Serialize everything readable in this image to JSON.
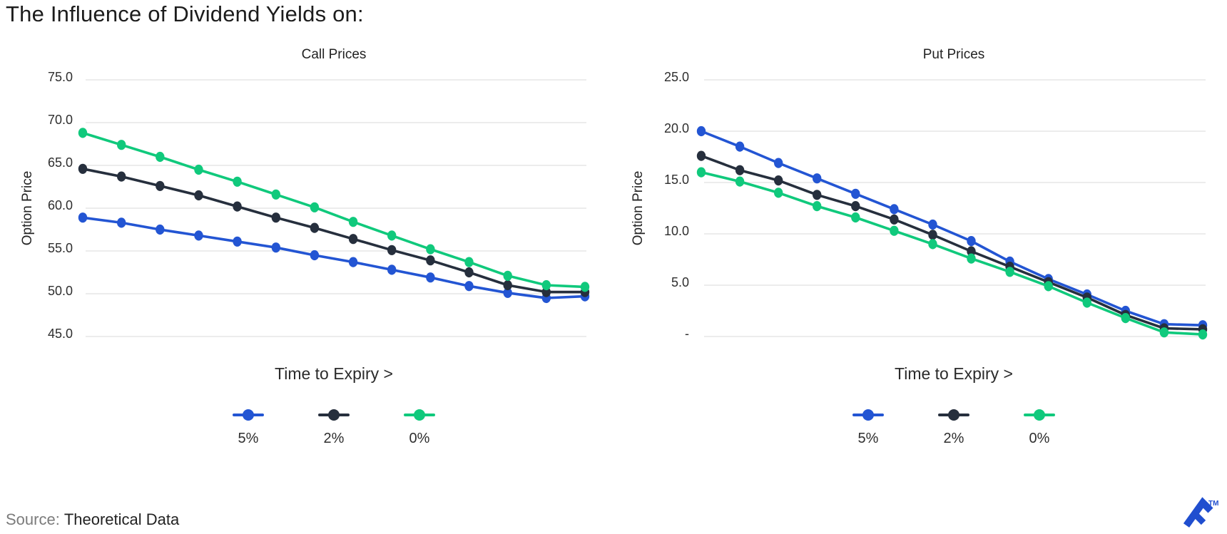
{
  "page": {
    "title": "The Influence of Dividend Yields on:",
    "source_label": "Source:",
    "source_value": "Theoretical Data",
    "trademark": "TM"
  },
  "colors": {
    "series_5pct": "#2355D3",
    "series_2pct": "#262F3D",
    "series_0pct": "#10C97C",
    "gridline": "#ECECEC",
    "logo_blue": "#204ECF"
  },
  "chart_data": [
    {
      "type": "line",
      "title": "Call Prices",
      "ylabel": "Option Price",
      "xlabel": "Time to Expiry >",
      "grid": true,
      "legend_position": "bottom",
      "x_points": 14,
      "x_tick_labels_visible": false,
      "ylim": [
        45,
        75
      ],
      "yticks": {
        "values": [
          75,
          70,
          65,
          60,
          55,
          50,
          45
        ],
        "labels": [
          "75.0",
          "70.0",
          "65.0",
          "60.0",
          "55.0",
          "50.0",
          "45.0"
        ]
      },
      "series": [
        {
          "name": "5%",
          "color_key": "series_5pct",
          "values": [
            58.9,
            58.3,
            57.5,
            56.8,
            56.1,
            55.4,
            54.5,
            53.7,
            52.8,
            51.9,
            50.9,
            50.1,
            49.5,
            49.7
          ]
        },
        {
          "name": "2%",
          "color_key": "series_2pct",
          "values": [
            64.6,
            63.7,
            62.6,
            61.5,
            60.2,
            58.9,
            57.7,
            56.4,
            55.1,
            53.9,
            52.5,
            51.0,
            50.2,
            50.2
          ]
        },
        {
          "name": "0%",
          "color_key": "series_0pct",
          "values": [
            68.8,
            67.4,
            66.0,
            64.5,
            63.1,
            61.6,
            60.1,
            58.4,
            56.8,
            55.2,
            53.7,
            52.1,
            51.0,
            50.8
          ]
        }
      ]
    },
    {
      "type": "line",
      "title": "Put Prices",
      "ylabel": "Option Price",
      "xlabel": "Time to Expiry >",
      "grid": true,
      "legend_position": "bottom",
      "x_points": 14,
      "x_tick_labels_visible": false,
      "ylim": [
        0,
        25
      ],
      "yticks": {
        "values": [
          25,
          20,
          15,
          10,
          5,
          0
        ],
        "labels": [
          "25.0",
          "20.0",
          "15.0",
          "10.0",
          "5.0",
          "-"
        ]
      },
      "series": [
        {
          "name": "5%",
          "color_key": "series_5pct",
          "values": [
            20.0,
            18.5,
            16.9,
            15.4,
            13.9,
            12.4,
            10.9,
            9.3,
            7.3,
            5.6,
            4.1,
            2.5,
            1.2,
            1.1
          ]
        },
        {
          "name": "2%",
          "color_key": "series_2pct",
          "values": [
            17.6,
            16.2,
            15.2,
            13.8,
            12.7,
            11.4,
            9.9,
            8.3,
            6.8,
            5.3,
            3.8,
            2.1,
            0.8,
            0.7
          ]
        },
        {
          "name": "0%",
          "color_key": "series_0pct",
          "values": [
            16.0,
            15.1,
            14.0,
            12.7,
            11.6,
            10.3,
            9.0,
            7.6,
            6.3,
            4.9,
            3.3,
            1.8,
            0.4,
            0.2
          ]
        }
      ]
    }
  ]
}
